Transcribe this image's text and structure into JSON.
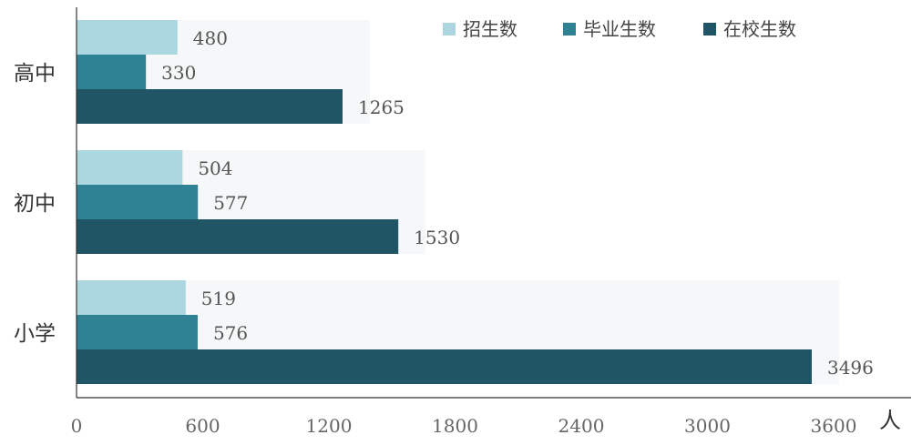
{
  "chart_data": {
    "type": "bar",
    "orientation": "horizontal",
    "categories": [
      "高中",
      "初中",
      "小学"
    ],
    "series": [
      {
        "name": "招生数",
        "values": [
          480,
          504,
          519
        ],
        "color": "#acd6e0"
      },
      {
        "name": "毕业生数",
        "values": [
          330,
          577,
          576
        ],
        "color": "#2f8294"
      },
      {
        "name": "在校生数",
        "values": [
          1265,
          1530,
          3496
        ],
        "color": "#1f5565"
      }
    ],
    "x_ticks": [
      0,
      600,
      1200,
      1800,
      2400,
      3000,
      3600
    ],
    "xlim": [
      0,
      3600
    ],
    "unit": "人",
    "legend_position": "top-right",
    "grid": false,
    "data_labels": true
  }
}
